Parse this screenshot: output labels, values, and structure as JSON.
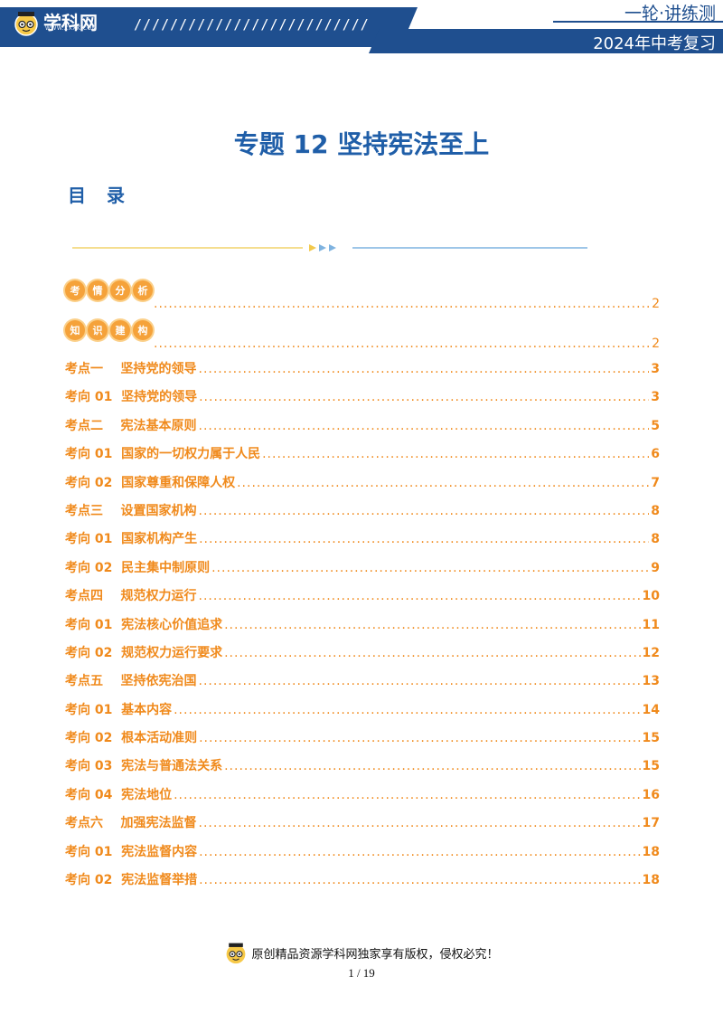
{
  "header": {
    "logo_text": "学科网",
    "logo_url": "WWW.ZXXK.COM",
    "slashes": "//////////////////////////",
    "top_right": "一轮·讲练测",
    "bottom_right": "2024年中考复习"
  },
  "title": "专题 12  坚持宪法至上",
  "toc_heading": "目  录",
  "badges": [
    {
      "chars": [
        "考",
        "情",
        "分",
        "析"
      ],
      "page": "2"
    },
    {
      "chars": [
        "知",
        "识",
        "建",
        "构"
      ],
      "page": "2"
    }
  ],
  "toc": [
    {
      "label": "考点一    坚持党的领导",
      "page": "3"
    },
    {
      "label": "考向 01  坚持党的领导",
      "page": "3"
    },
    {
      "label": "考点二    宪法基本原则",
      "page": "5"
    },
    {
      "label": "考向 01  国家的一切权力属于人民",
      "page": "6"
    },
    {
      "label": "考向 02  国家尊重和保障人权",
      "page": "7"
    },
    {
      "label": "考点三    设置国家机构",
      "page": "8"
    },
    {
      "label": "考向 01  国家机构产生",
      "page": "8"
    },
    {
      "label": "考向 02  民主集中制原则",
      "page": "9"
    },
    {
      "label": "考点四    规范权力运行",
      "page": "10"
    },
    {
      "label": "考向 01  宪法核心价值追求",
      "page": "11"
    },
    {
      "label": "考向 02  规范权力运行要求",
      "page": "12"
    },
    {
      "label": "考点五    坚持依宪治国",
      "page": "13"
    },
    {
      "label": "考向 01  基本内容",
      "page": "14"
    },
    {
      "label": "考向 02  根本活动准则",
      "page": "15"
    },
    {
      "label": "考向 03  宪法与普通法关系",
      "page": "15"
    },
    {
      "label": "考向 04  宪法地位",
      "page": "16"
    },
    {
      "label": "考点六    加强宪法监督",
      "page": "17"
    },
    {
      "label": "考向 01  宪法监督内容",
      "page": "18"
    },
    {
      "label": "考向 02  宪法监督举措",
      "page": "18"
    }
  ],
  "footer": {
    "notice": "原创精品资源学科网独家享有版权，侵权必究！",
    "page": "1 / 19"
  },
  "colors": {
    "brand_blue": "#1f4f8f",
    "title_blue": "#1f5ea8",
    "toc_orange": "#f08a1c",
    "badge_orange": "#f5a23a"
  }
}
